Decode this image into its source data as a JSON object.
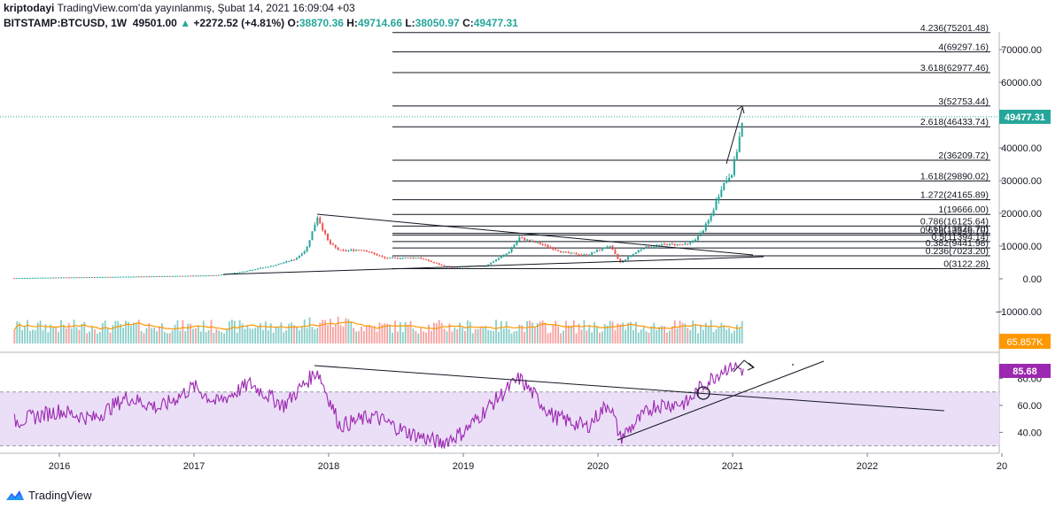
{
  "header": {
    "publisher": "kriptodayi",
    "published_text": "TradingView.com'da yayınlanmış, Şubat 14, 2021 16:09:04 +03",
    "symbol": "BITSTAMP:BTCUSD, 1W",
    "last": "49501.00",
    "change_arrow": "▲",
    "change": "+2272.52 (+4.81%)",
    "o_label": "O:",
    "o": "38870.36",
    "h_label": "H:",
    "h": "49714.66",
    "l_label": "L:",
    "l": "38050.97",
    "c_label": "C:",
    "c": "49477.31"
  },
  "footer": {
    "brand": "TradingView"
  },
  "colors": {
    "up": "#26a69a",
    "down": "#ef5350",
    "rsi": "#9c27b0",
    "rsi_band": "#e9dcf7",
    "vol_ma": "#ff9800",
    "price_badge": "#26a69a",
    "vol_badge": "#ff9800",
    "rsi_badge": "#9c27b0"
  },
  "chart_data": {
    "type": "candlestick",
    "panes": [
      "price",
      "volume",
      "rsi"
    ],
    "price": {
      "yticks": [
        70000,
        60000,
        50000,
        40000,
        30000,
        20000,
        10000,
        0,
        -10000
      ],
      "ytick_labels": [
        "70000.00",
        "60000.00",
        "50000.00",
        "40000.00",
        "30000.00",
        "20000.00",
        "10000.00",
        "0.00",
        "−10000.00"
      ],
      "last_price": 49477.31,
      "last_label": "49477.31",
      "weekly_close_path": [
        [
          "2015-09",
          230
        ],
        [
          "2016-01",
          430
        ],
        [
          "2016-06",
          620
        ],
        [
          "2016-12",
          900
        ],
        [
          "2017-03",
          1100
        ],
        [
          "2017-05",
          2000
        ],
        [
          "2017-08",
          4000
        ],
        [
          "2017-10",
          6000
        ],
        [
          "2017-11",
          9000
        ],
        [
          "2017-12",
          19000
        ],
        [
          "2018-01",
          11000
        ],
        [
          "2018-02",
          8500
        ],
        [
          "2018-04",
          9000
        ],
        [
          "2018-06",
          6300
        ],
        [
          "2018-09",
          6500
        ],
        [
          "2018-11",
          4200
        ],
        [
          "2018-12",
          3500
        ],
        [
          "2019-03",
          4000
        ],
        [
          "2019-05",
          8000
        ],
        [
          "2019-06",
          12500
        ],
        [
          "2019-08",
          10500
        ],
        [
          "2019-10",
          8000
        ],
        [
          "2019-12",
          7200
        ],
        [
          "2020-02",
          10200
        ],
        [
          "2020-03",
          5000
        ],
        [
          "2020-05",
          9500
        ],
        [
          "2020-07",
          10500
        ],
        [
          "2020-09",
          10500
        ],
        [
          "2020-10",
          13000
        ],
        [
          "2020-11",
          18500
        ],
        [
          "2020-12",
          28000
        ],
        [
          "2021-01",
          33000
        ],
        [
          "2021-02",
          49477
        ]
      ]
    },
    "fib_levels": [
      {
        "label": "4.236(75201.48)",
        "value": 75201.48
      },
      {
        "label": "4(69297.16)",
        "value": 69297.16
      },
      {
        "label": "3.618(62977.46)",
        "value": 62977.46
      },
      {
        "label": "3(52753.44)",
        "value": 52753.44
      },
      {
        "label": "2.618(46433.74)",
        "value": 46433.74
      },
      {
        "label": "2(36209.72)",
        "value": 36209.72
      },
      {
        "label": "1.618(29890.02)",
        "value": 29890.02
      },
      {
        "label": "1.272(24165.89)",
        "value": 24165.89
      },
      {
        "label": "1(19666.00)",
        "value": 19666.0
      },
      {
        "label": "0.786(16125.64)",
        "value": 16125.64
      },
      {
        "label": "0.65(13876.70)",
        "value": 13876.7
      },
      {
        "label": "0.618(13346.70)",
        "value": 13346.7
      },
      {
        "label": "0.5(11394.14)",
        "value": 11394.14
      },
      {
        "label": "0.382(9441.98)",
        "value": 9441.98
      },
      {
        "label": "0.236(7023.20)",
        "value": 7023.2
      },
      {
        "label": "0(3122.28)",
        "value": 3122.28
      }
    ],
    "volume": {
      "ma_label": "65.857K"
    },
    "rsi": {
      "yticks": [
        80,
        60,
        40
      ],
      "ytick_labels": [
        "80.00",
        "60.00",
        "40.00"
      ],
      "band": [
        30,
        70
      ],
      "last": 85.68,
      "last_label": "85.68",
      "path": [
        [
          "2015-09",
          48
        ],
        [
          "2016-01",
          56
        ],
        [
          "2016-04",
          50
        ],
        [
          "2016-07",
          66
        ],
        [
          "2016-10",
          58
        ],
        [
          "2017-01",
          74
        ],
        [
          "2017-03",
          62
        ],
        [
          "2017-06",
          76
        ],
        [
          "2017-09",
          60
        ],
        [
          "2017-12",
          86
        ],
        [
          "2018-02",
          45
        ],
        [
          "2018-05",
          52
        ],
        [
          "2018-08",
          40
        ],
        [
          "2018-11",
          32
        ],
        [
          "2019-01",
          40
        ],
        [
          "2019-04",
          65
        ],
        [
          "2019-06",
          80
        ],
        [
          "2019-09",
          52
        ],
        [
          "2019-12",
          44
        ],
        [
          "2020-02",
          62
        ],
        [
          "2020-03",
          36
        ],
        [
          "2020-06",
          60
        ],
        [
          "2020-09",
          62
        ],
        [
          "2020-10",
          72
        ],
        [
          "2020-12",
          86
        ],
        [
          "2021-01",
          90
        ],
        [
          "2021-02",
          86
        ]
      ]
    },
    "xtick_labels": [
      "2016",
      "2017",
      "2018",
      "2019",
      "2020",
      "2021",
      "2022",
      "20"
    ]
  }
}
